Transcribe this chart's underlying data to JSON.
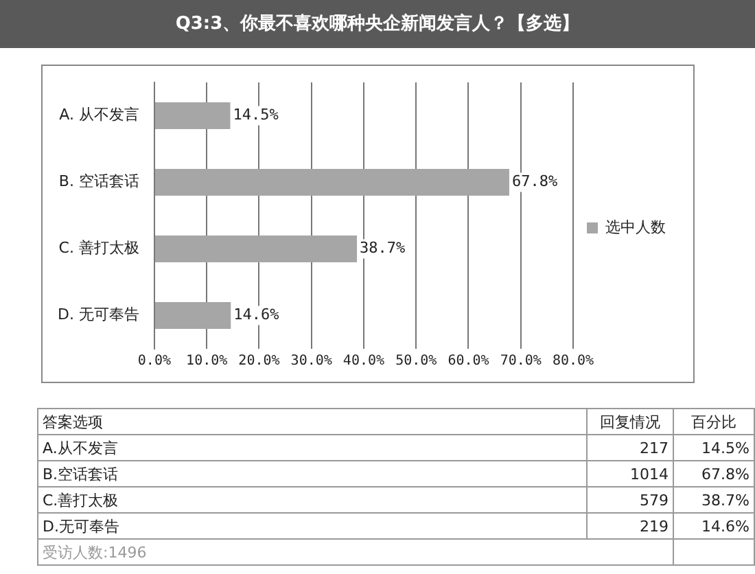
{
  "chart_data": {
    "type": "bar",
    "orientation": "horizontal",
    "title": "Q3:3、你最不喜欢哪种央企新闻发言人？【多选】",
    "categories": [
      "A. 从不发言",
      "B. 空话套话",
      "C. 善打太极",
      "D. 无可奉告"
    ],
    "series": [
      {
        "name": "选中人数",
        "color": "#a6a6a6",
        "values": [
          14.5,
          67.8,
          38.7,
          14.6
        ],
        "value_labels": [
          "14.5%",
          "67.8%",
          "38.7%",
          "14.6%"
        ]
      }
    ],
    "xlim": [
      0,
      80
    ],
    "xticks": [
      {
        "value": 0,
        "label": "0.0%"
      },
      {
        "value": 10,
        "label": "10.0%"
      },
      {
        "value": 20,
        "label": "20.0%"
      },
      {
        "value": 30,
        "label": "30.0%"
      },
      {
        "value": 40,
        "label": "40.0%"
      },
      {
        "value": 50,
        "label": "50.0%"
      },
      {
        "value": 60,
        "label": "60.0%"
      },
      {
        "value": 70,
        "label": "70.0%"
      },
      {
        "value": 80,
        "label": "80.0%"
      }
    ],
    "grid": "x",
    "legend": "right",
    "annotations": [
      "答案选项",
      "回复情况",
      "百分比",
      "A.从不发言",
      "217",
      "14.5%",
      "B.空话套话",
      "1014",
      "67.8%",
      "C.善打太极",
      "579",
      "38.7%",
      "D.无可奉告",
      "219",
      "14.6%",
      "受访人数:1496"
    ]
  }
}
